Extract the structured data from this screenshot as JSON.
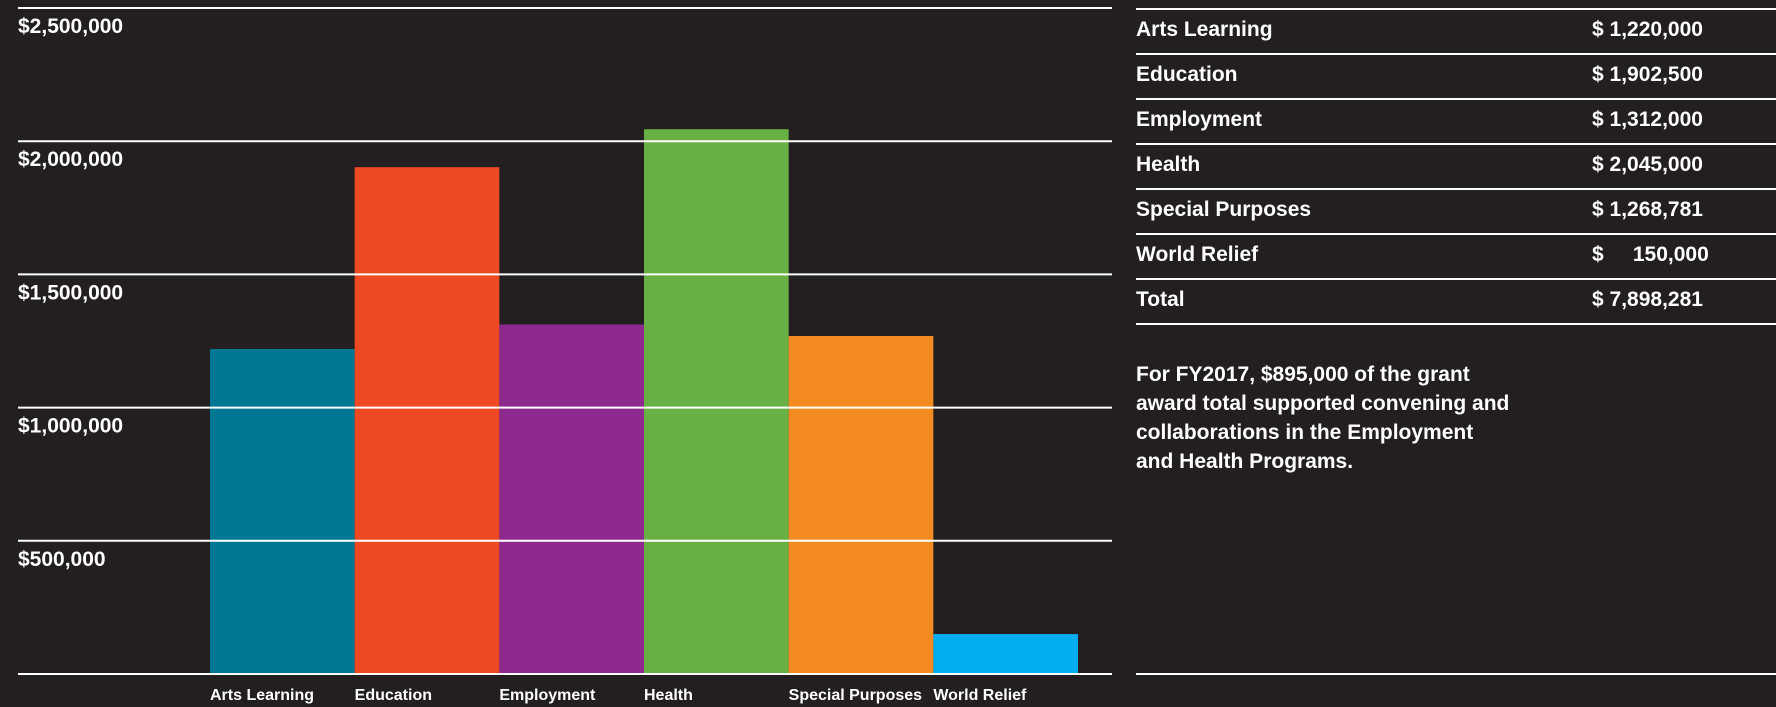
{
  "chart_data": {
    "type": "bar",
    "categories": [
      "Arts Learning",
      "Education",
      "Employment",
      "Health",
      "Special Purposes",
      "World Relief"
    ],
    "values": [
      1220000,
      1902500,
      1312000,
      2045000,
      1268781,
      150000
    ],
    "colors": [
      "#007893",
      "#ef4923",
      "#8e2a8f",
      "#68b043",
      "#f48b20",
      "#00aeef"
    ],
    "ylim": [
      0,
      2500000
    ],
    "yticks": [
      500000,
      1000000,
      1500000,
      2000000,
      2500000
    ],
    "ytick_labels": [
      "$500,000",
      "$1,000,000",
      "$1,500,000",
      "$2,000,000",
      "$2,500,000"
    ],
    "grid": true,
    "title": "",
    "xlabel": "",
    "ylabel": ""
  },
  "table": {
    "rows": [
      {
        "name": "Arts Learning",
        "value": "$ 1,220,000"
      },
      {
        "name": "Education",
        "value": "$ 1,902,500"
      },
      {
        "name": "Employment",
        "value": "$ 1,312,000"
      },
      {
        "name": "Health",
        "value": "$ 2,045,000"
      },
      {
        "name": "Special Purposes",
        "value": "$ 1,268,781"
      },
      {
        "name": "World Relief",
        "value": "$     150,000"
      },
      {
        "name": "Total",
        "value": "$ 7,898,281"
      }
    ]
  },
  "note": {
    "lines": [
      "For FY2017, $895,000 of the grant",
      "award total supported convening and",
      "collaborations in the Employment",
      "and Health Programs."
    ]
  }
}
